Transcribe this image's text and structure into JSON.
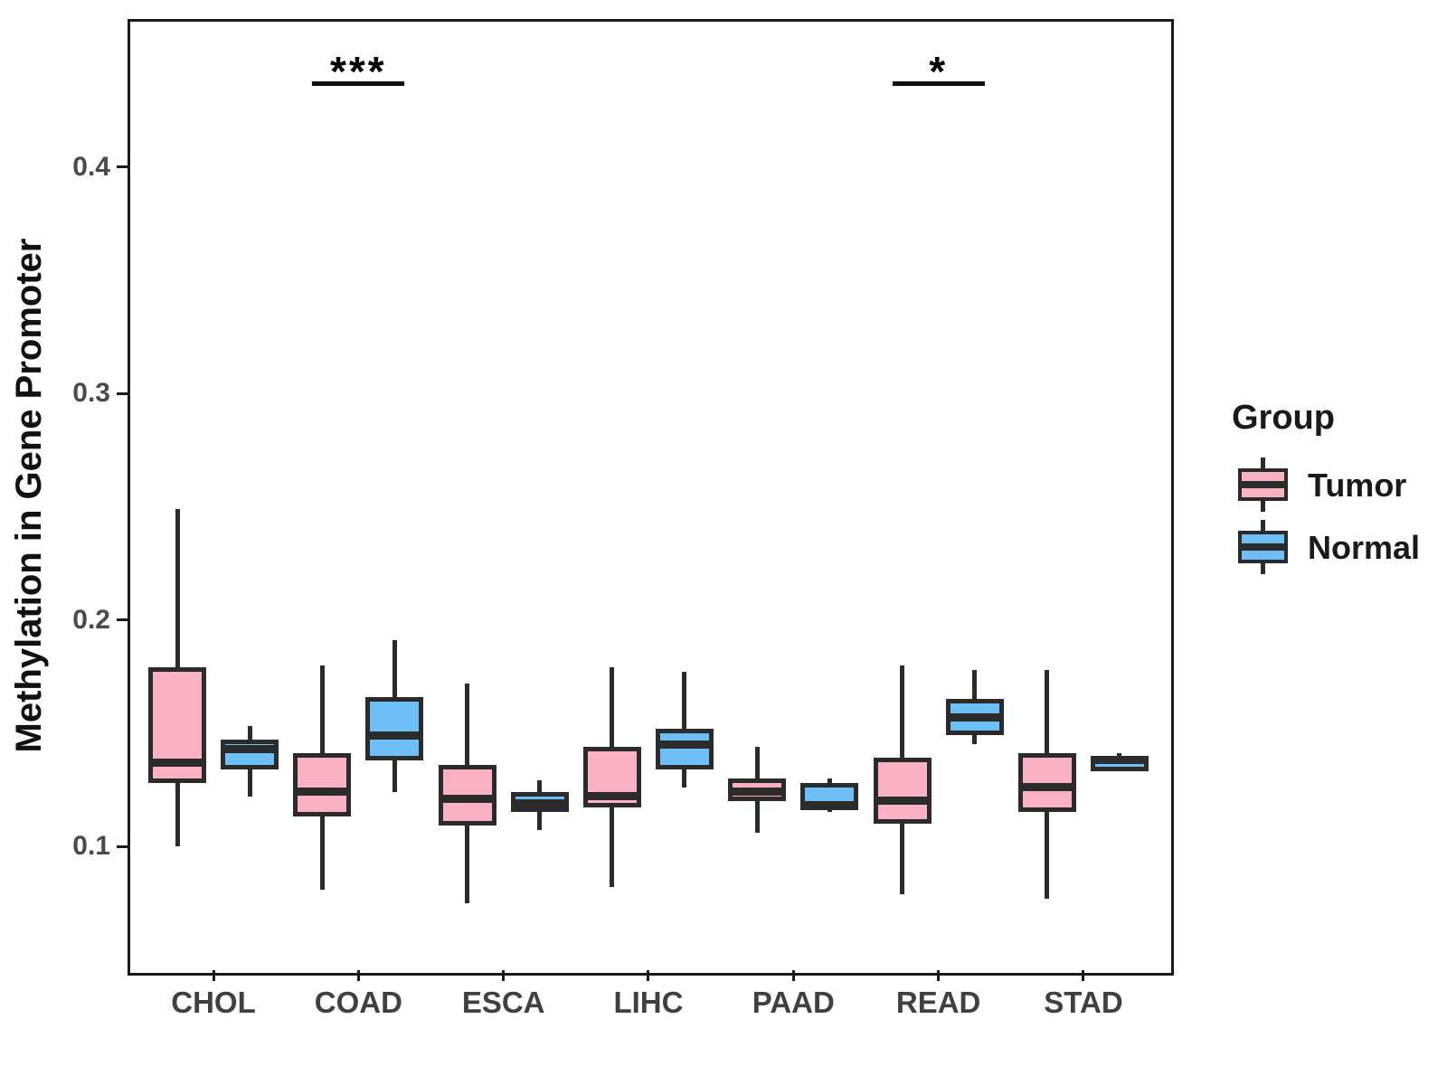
{
  "figure": {
    "y_axis": {
      "title": "Methylation in Gene Promoter",
      "tick_labels": [
        "0.1",
        "0.2",
        "0.3",
        "0.4"
      ],
      "tick_values": [
        0.1,
        0.2,
        0.3,
        0.4
      ]
    },
    "x_axis": {
      "categories": [
        "CHOL",
        "COAD",
        "ESCA",
        "LIHC",
        "PAAD",
        "READ",
        "STAD"
      ]
    },
    "legend": {
      "title": "Group",
      "items": [
        {
          "label": "Tumor",
          "color": "#F9B1C3"
        },
        {
          "label": "Normal",
          "color": "#6DBFF5"
        }
      ]
    }
  },
  "chart_data": {
    "type": "boxplot",
    "title": "",
    "xlabel": "",
    "ylabel": "Methylation in Gene Promoter",
    "ylim": [
      0.046,
      0.465
    ],
    "grid": false,
    "legend_position": "right",
    "categories": [
      "CHOL",
      "COAD",
      "ESCA",
      "LIHC",
      "PAAD",
      "READ",
      "STAD"
    ],
    "series": [
      {
        "name": "Tumor",
        "color": "#F9B1C3",
        "boxes": [
          {
            "category": "CHOL",
            "whisker_low": 0.1,
            "q1": 0.128,
            "median": 0.137,
            "q3": 0.179,
            "whisker_high": 0.249
          },
          {
            "category": "COAD",
            "whisker_low": 0.081,
            "q1": 0.113,
            "median": 0.124,
            "q3": 0.141,
            "whisker_high": 0.18
          },
          {
            "category": "ESCA",
            "whisker_low": 0.075,
            "q1": 0.109,
            "median": 0.121,
            "q3": 0.136,
            "whisker_high": 0.172
          },
          {
            "category": "LIHC",
            "whisker_low": 0.082,
            "q1": 0.117,
            "median": 0.122,
            "q3": 0.144,
            "whisker_high": 0.179
          },
          {
            "category": "PAAD",
            "whisker_low": 0.106,
            "q1": 0.12,
            "median": 0.124,
            "q3": 0.13,
            "whisker_high": 0.144
          },
          {
            "category": "READ",
            "whisker_low": 0.079,
            "q1": 0.11,
            "median": 0.12,
            "q3": 0.139,
            "whisker_high": 0.18
          },
          {
            "category": "STAD",
            "whisker_low": 0.077,
            "q1": 0.115,
            "median": 0.126,
            "q3": 0.141,
            "whisker_high": 0.178
          }
        ]
      },
      {
        "name": "Normal",
        "color": "#6DBFF5",
        "boxes": [
          {
            "category": "CHOL",
            "whisker_low": 0.122,
            "q1": 0.134,
            "median": 0.143,
            "q3": 0.147,
            "whisker_high": 0.153
          },
          {
            "category": "COAD",
            "whisker_low": 0.124,
            "q1": 0.138,
            "median": 0.149,
            "q3": 0.166,
            "whisker_high": 0.191
          },
          {
            "category": "ESCA",
            "whisker_low": 0.107,
            "q1": 0.115,
            "median": 0.119,
            "q3": 0.124,
            "whisker_high": 0.129
          },
          {
            "category": "LIHC",
            "whisker_low": 0.126,
            "q1": 0.134,
            "median": 0.145,
            "q3": 0.152,
            "whisker_high": 0.177
          },
          {
            "category": "PAAD",
            "whisker_low": 0.115,
            "q1": 0.116,
            "median": 0.118,
            "q3": 0.128,
            "whisker_high": 0.13
          },
          {
            "category": "READ",
            "whisker_low": 0.145,
            "q1": 0.149,
            "median": 0.157,
            "q3": 0.165,
            "whisker_high": 0.178
          },
          {
            "category": "STAD",
            "whisker_low": 0.135,
            "q1": 0.137,
            "median": 0.138,
            "q3": 0.139,
            "whisker_high": 0.141
          }
        ]
      }
    ],
    "significance": [
      {
        "category": "COAD",
        "label": "***"
      },
      {
        "category": "READ",
        "label": "*"
      }
    ]
  }
}
